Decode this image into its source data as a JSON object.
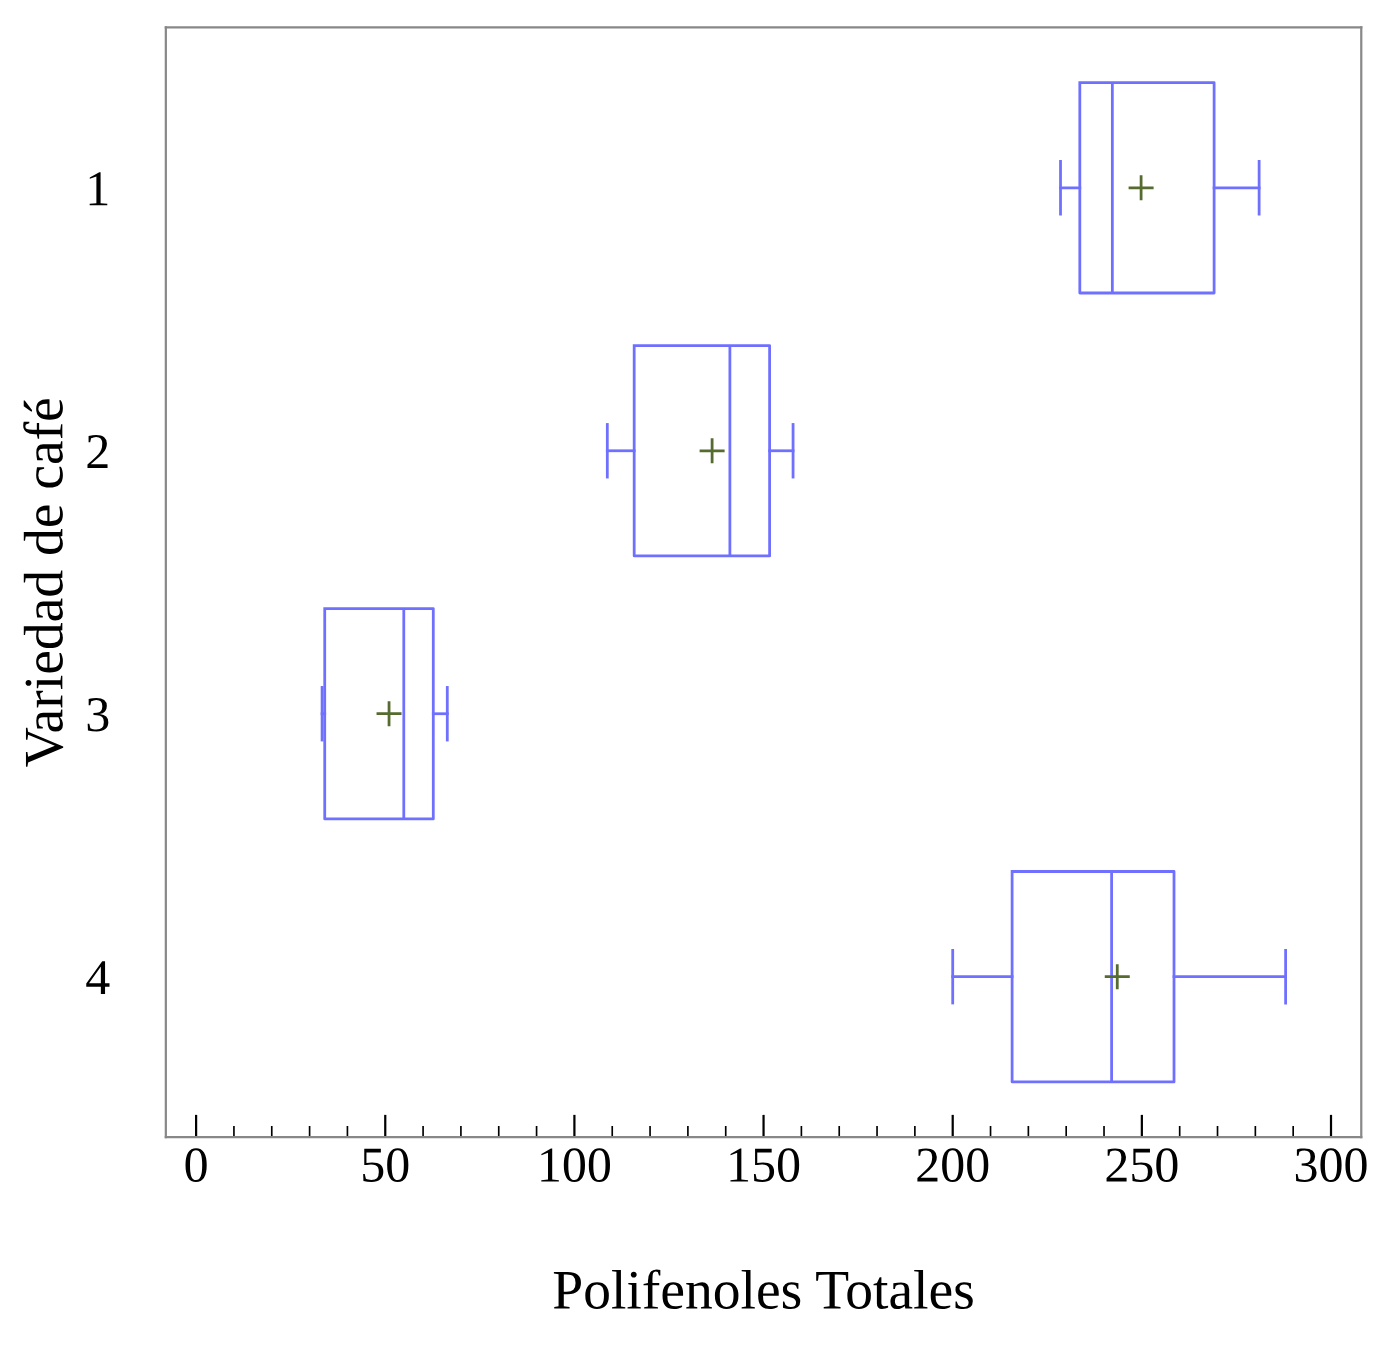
{
  "chart_data": {
    "type": "box",
    "orientation": "horizontal",
    "xlabel": "Polifenoles Totales",
    "ylabel": "Variedad de café",
    "categories": [
      "1",
      "2",
      "3",
      "4"
    ],
    "series": [
      {
        "color": "#7070ff",
        "boxes": [
          {
            "low": 228.5,
            "q1": 233.6,
            "median": 242.2,
            "q3": 269.1,
            "high": 281,
            "mean": 249.8
          },
          {
            "low": 108.7,
            "q1": 115.8,
            "median": 141.1,
            "q3": 151.6,
            "high": 157.8,
            "mean": 136.4
          },
          {
            "low": 33.3,
            "q1": 34,
            "median": 54.9,
            "q3": 62.7,
            "high": 66.4,
            "mean": 51
          },
          {
            "low": 200,
            "q1": 215.7,
            "median": 242,
            "q3": 258.5,
            "high": 288,
            "mean": 243.5
          }
        ]
      }
    ],
    "xlim": [
      -8,
      308
    ],
    "xticks": [
      0,
      50,
      100,
      150,
      200,
      250,
      300
    ],
    "grid": false
  }
}
